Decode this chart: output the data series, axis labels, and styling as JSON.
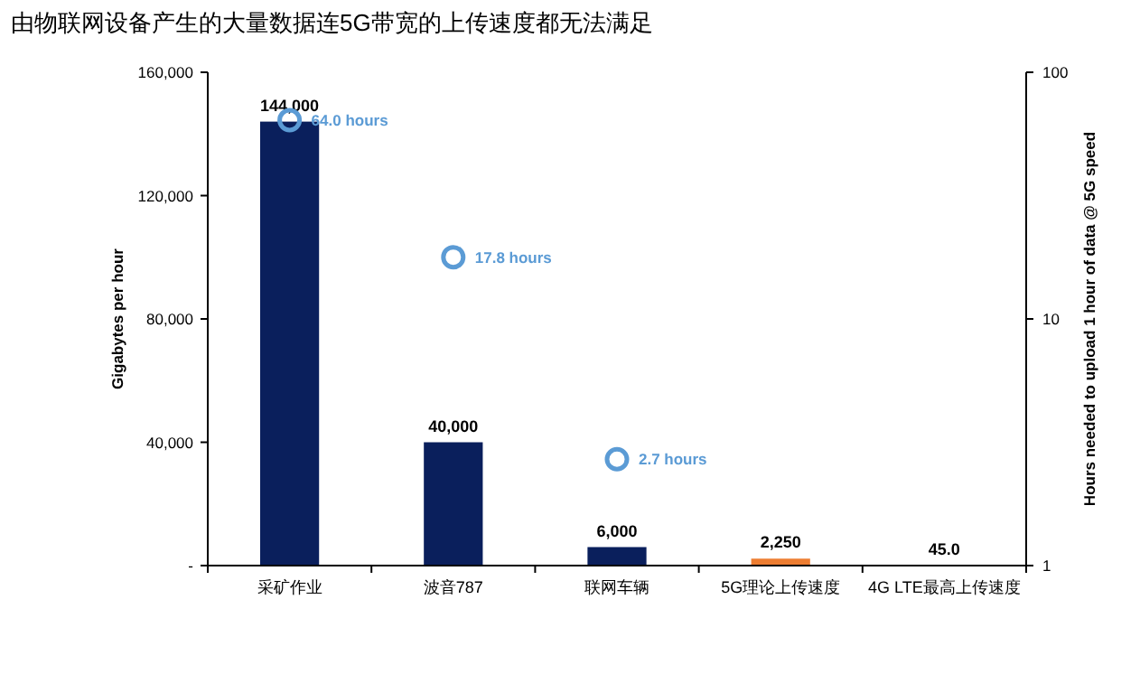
{
  "chart_data": {
    "type": "bar",
    "title": "由物联网设备产生的大量数据连5G带宽的上传速度都无法满足",
    "ylabel": "Gigabytes per hour",
    "y2label": "Hours needed to upload 1 hour of data @ 5G speed",
    "categories": [
      "采矿作业",
      "波音787",
      "联网车辆",
      "5G理论上传速度",
      "4G LTE最高上传速度"
    ],
    "series": [
      {
        "colors": [
          "#0a1f5c",
          "#0a1f5c",
          "#0a1f5c",
          "#ed7d31",
          "#0a1f5c"
        ],
        "values": [
          144000,
          40000,
          6000,
          2250,
          45
        ],
        "value_labels": [
          "144,000",
          "40,000",
          "6,000",
          "2,250",
          "45.0"
        ]
      },
      {
        "type": "scatter",
        "axis": "y2",
        "color": "#5b9bd5",
        "x": [
          "采矿作业",
          "波音787",
          "联网车辆"
        ],
        "values": [
          64,
          17.8,
          2.7
        ],
        "value_labels": [
          "64.0 hours",
          "17.8 hours",
          "2.7 hours"
        ]
      }
    ],
    "ylim": [
      0,
      160000
    ],
    "yticks": [
      {
        "value": 0,
        "label": "-"
      },
      {
        "value": 40000,
        "label": "40,000"
      },
      {
        "value": 80000,
        "label": "80,000"
      },
      {
        "value": 120000,
        "label": "120,000"
      },
      {
        "value": 160000,
        "label": "160,000"
      }
    ],
    "y2lim": [
      1,
      100
    ],
    "y2ticks": [
      1,
      10,
      100
    ],
    "log": "y2",
    "marker": "circle",
    "grid": false
  }
}
